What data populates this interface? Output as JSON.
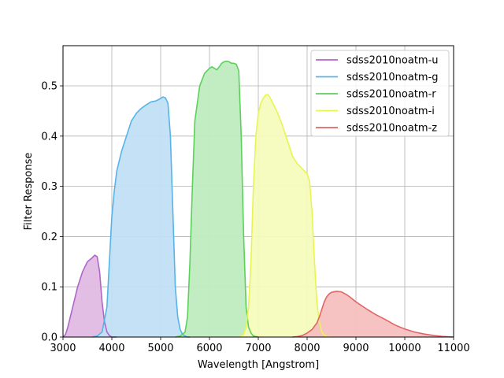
{
  "chart_data": {
    "type": "area",
    "title": "",
    "xlabel": "Wavelength [Angstrom]",
    "ylabel": "Filter Response",
    "xlim": [
      3000,
      11000
    ],
    "ylim": [
      0,
      0.58
    ],
    "xticks": [
      3000,
      4000,
      5000,
      6000,
      7000,
      8000,
      9000,
      10000,
      11000
    ],
    "xtick_labels": [
      "3000",
      "4000",
      "5000",
      "6000",
      "7000",
      "8000",
      "9000",
      "10000",
      "11000"
    ],
    "yticks": [
      0,
      0.1,
      0.2,
      0.3,
      0.4,
      0.5
    ],
    "ytick_labels": [
      "0.0",
      "0.1",
      "0.2",
      "0.3",
      "0.4",
      "0.5"
    ],
    "grid": true,
    "legend_position": "top-right",
    "series": [
      {
        "name": "sdss2010noatm-u",
        "color": "#b065c8",
        "fill": "#e0bbe4",
        "x": [
          3000,
          3050,
          3100,
          3200,
          3300,
          3400,
          3500,
          3600,
          3650,
          3700,
          3750,
          3800,
          3850,
          3900,
          3950,
          4000,
          4100
        ],
        "y": [
          0.0,
          0.005,
          0.02,
          0.06,
          0.1,
          0.13,
          0.15,
          0.158,
          0.163,
          0.16,
          0.13,
          0.07,
          0.03,
          0.01,
          0.003,
          0.0,
          0.0
        ]
      },
      {
        "name": "sdss2010noatm-g",
        "color": "#56b4e9",
        "fill": "#c1dff5",
        "x": [
          3600,
          3700,
          3800,
          3900,
          3950,
          4000,
          4050,
          4100,
          4200,
          4300,
          4400,
          4500,
          4600,
          4700,
          4800,
          4900,
          5000,
          5050,
          5100,
          5150,
          5200,
          5250,
          5300,
          5350,
          5400,
          5450,
          5500,
          5550,
          5600
        ],
        "y": [
          0.0,
          0.002,
          0.01,
          0.06,
          0.15,
          0.24,
          0.29,
          0.33,
          0.37,
          0.4,
          0.43,
          0.445,
          0.455,
          0.462,
          0.468,
          0.47,
          0.475,
          0.478,
          0.476,
          0.465,
          0.4,
          0.25,
          0.1,
          0.04,
          0.015,
          0.005,
          0.002,
          0.0,
          0.0
        ]
      },
      {
        "name": "sdss2010noatm-r",
        "color": "#5bd15b",
        "fill": "#bfecbf",
        "x": [
          5300,
          5400,
          5500,
          5550,
          5600,
          5650,
          5700,
          5800,
          5900,
          6000,
          6050,
          6100,
          6150,
          6200,
          6250,
          6300,
          6350,
          6400,
          6450,
          6500,
          6550,
          6600,
          6650,
          6700,
          6750,
          6800,
          6850,
          6900,
          7000
        ],
        "y": [
          0.0,
          0.002,
          0.01,
          0.04,
          0.15,
          0.3,
          0.43,
          0.5,
          0.525,
          0.535,
          0.538,
          0.535,
          0.532,
          0.538,
          0.545,
          0.548,
          0.549,
          0.548,
          0.545,
          0.545,
          0.543,
          0.53,
          0.4,
          0.2,
          0.06,
          0.02,
          0.008,
          0.002,
          0.0
        ]
      },
      {
        "name": "sdss2010noatm-i",
        "color": "#e8f551",
        "fill": "#f6fbbd",
        "x": [
          6600,
          6700,
          6750,
          6800,
          6850,
          6900,
          6950,
          7000,
          7050,
          7100,
          7150,
          7200,
          7250,
          7300,
          7400,
          7500,
          7600,
          7700,
          7800,
          7900,
          8000,
          8050,
          8100,
          8150,
          8200,
          8250,
          8300,
          8350,
          8400,
          8500
        ],
        "y": [
          0.0,
          0.005,
          0.02,
          0.06,
          0.15,
          0.3,
          0.4,
          0.445,
          0.465,
          0.475,
          0.482,
          0.483,
          0.475,
          0.465,
          0.445,
          0.42,
          0.39,
          0.36,
          0.345,
          0.335,
          0.325,
          0.31,
          0.25,
          0.15,
          0.07,
          0.03,
          0.01,
          0.004,
          0.001,
          0.0
        ]
      },
      {
        "name": "sdss2010noatm-z",
        "color": "#e06666",
        "fill": "#f5bfbf",
        "x": [
          7700,
          7800,
          7900,
          8000,
          8100,
          8200,
          8250,
          8300,
          8350,
          8400,
          8450,
          8500,
          8550,
          8600,
          8700,
          8800,
          8900,
          9000,
          9200,
          9400,
          9600,
          9800,
          10000,
          10200,
          10400,
          10600,
          10800,
          11000
        ],
        "y": [
          0.0,
          0.001,
          0.003,
          0.008,
          0.015,
          0.028,
          0.04,
          0.055,
          0.07,
          0.08,
          0.086,
          0.089,
          0.09,
          0.091,
          0.09,
          0.085,
          0.078,
          0.07,
          0.057,
          0.045,
          0.035,
          0.024,
          0.016,
          0.01,
          0.006,
          0.003,
          0.001,
          0.0
        ]
      }
    ]
  }
}
